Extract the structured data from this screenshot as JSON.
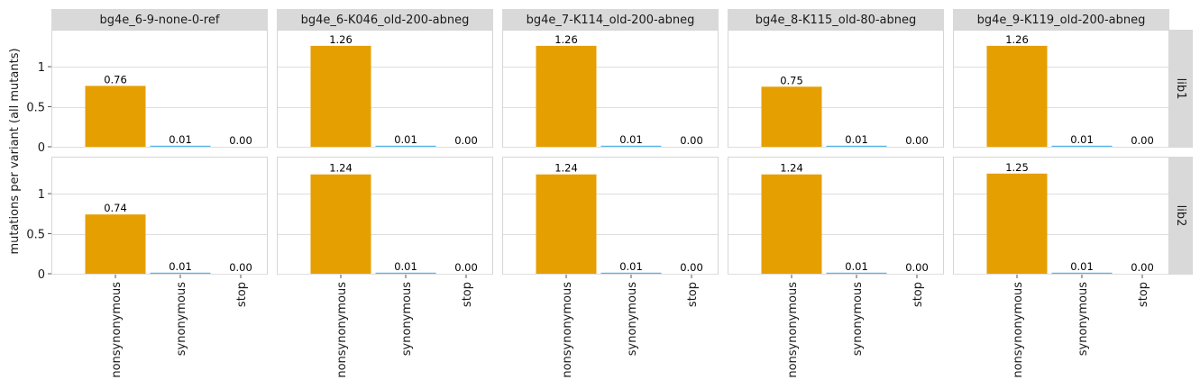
{
  "chart_data": {
    "type": "bar",
    "ylabel": "mutations per variant (all mutants)",
    "categories": [
      "nonsynonymous",
      "synonymous",
      "stop"
    ],
    "category_colors": [
      "#E69F00",
      "#56B4E9",
      "#009E73"
    ],
    "ylim": [
      0,
      1.45
    ],
    "yticks": [
      0,
      0.5,
      1
    ],
    "ytick_labels": [
      "0",
      "0.5",
      "1"
    ],
    "grid": true,
    "columns": [
      "bg4e_6-9-none-0-ref",
      "bg4e_6-K046_old-200-abneg",
      "bg4e_7-K114_old-200-abneg",
      "bg4e_8-K115_old-80-abneg",
      "bg4e_9-K119_old-200-abneg"
    ],
    "rows": [
      "lib1",
      "lib2"
    ],
    "panels": [
      [
        {
          "values": [
            0.76,
            0.01,
            0.0
          ],
          "labels": [
            "0.76",
            "0.01",
            "0.00"
          ]
        },
        {
          "values": [
            1.26,
            0.01,
            0.0
          ],
          "labels": [
            "1.26",
            "0.01",
            "0.00"
          ]
        },
        {
          "values": [
            1.26,
            0.01,
            0.0
          ],
          "labels": [
            "1.26",
            "0.01",
            "0.00"
          ]
        },
        {
          "values": [
            0.75,
            0.01,
            0.0
          ],
          "labels": [
            "0.75",
            "0.01",
            "0.00"
          ]
        },
        {
          "values": [
            1.26,
            0.01,
            0.0
          ],
          "labels": [
            "1.26",
            "0.01",
            "0.00"
          ]
        }
      ],
      [
        {
          "values": [
            0.74,
            0.01,
            0.0
          ],
          "labels": [
            "0.74",
            "0.01",
            "0.00"
          ]
        },
        {
          "values": [
            1.24,
            0.01,
            0.0
          ],
          "labels": [
            "1.24",
            "0.01",
            "0.00"
          ]
        },
        {
          "values": [
            1.24,
            0.01,
            0.0
          ],
          "labels": [
            "1.24",
            "0.01",
            "0.00"
          ]
        },
        {
          "values": [
            1.24,
            0.01,
            0.0
          ],
          "labels": [
            "1.24",
            "0.01",
            "0.00"
          ]
        },
        {
          "values": [
            1.25,
            0.01,
            0.0
          ],
          "labels": [
            "1.25",
            "0.01",
            "0.00"
          ]
        }
      ]
    ]
  }
}
